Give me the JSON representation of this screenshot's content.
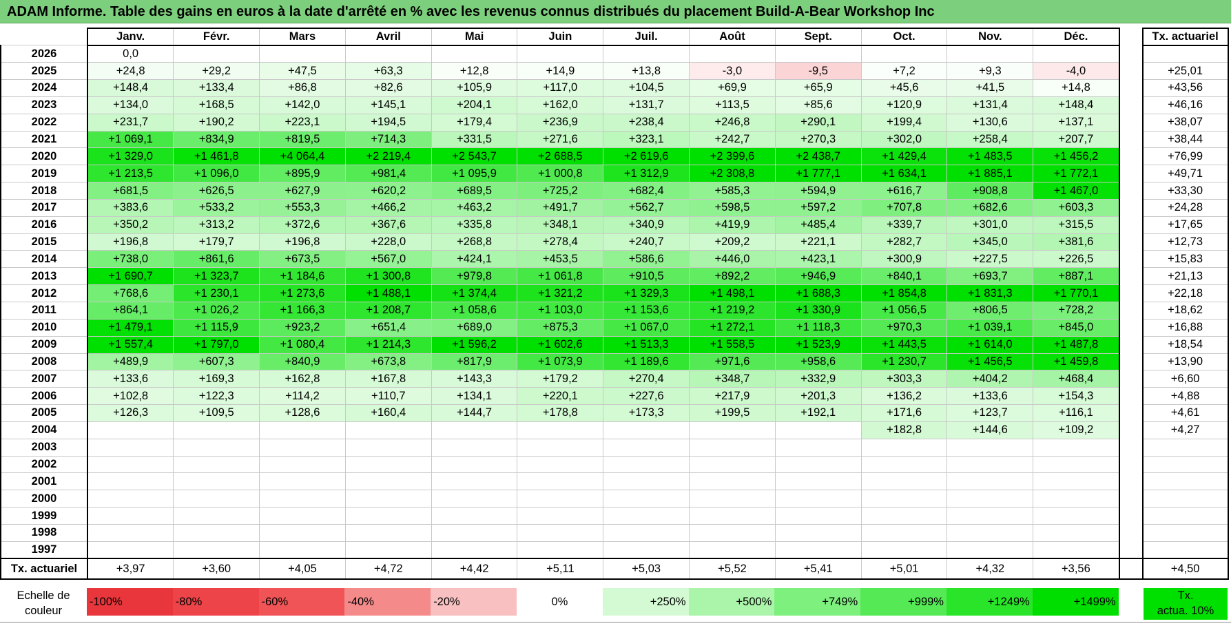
{
  "title": "ADAM Informe. Table des gains en euros à la date d'arrêté en % avec les revenus connus distribués du placement Build-A-Bear Workshop Inc",
  "chart_data": {
    "type": "table",
    "columns": [
      "Janv.",
      "Févr.",
      "Mars",
      "Avril",
      "Mai",
      "Juin",
      "Juil.",
      "Août",
      "Sept.",
      "Oct.",
      "Nov.",
      "Déc."
    ],
    "annual_header": "Tx. actuariel",
    "rows": [
      {
        "year": "2026",
        "values": [
          "0,0",
          "",
          "",
          "",
          "",
          "",
          "",
          "",
          "",
          "",
          "",
          ""
        ],
        "rate": ""
      },
      {
        "year": "2025",
        "values": [
          "+24,8",
          "+29,2",
          "+47,5",
          "+63,3",
          "+12,8",
          "+14,9",
          "+13,8",
          "-3,0",
          "-9,5",
          "+7,2",
          "+9,3",
          "-4,0"
        ],
        "rate": "+25,01"
      },
      {
        "year": "2024",
        "values": [
          "+148,4",
          "+133,4",
          "+86,8",
          "+82,6",
          "+105,9",
          "+117,0",
          "+104,5",
          "+69,9",
          "+65,9",
          "+45,6",
          "+41,5",
          "+14,8"
        ],
        "rate": "+43,56"
      },
      {
        "year": "2023",
        "values": [
          "+134,0",
          "+168,5",
          "+142,0",
          "+145,1",
          "+204,1",
          "+162,0",
          "+131,7",
          "+113,5",
          "+85,6",
          "+120,9",
          "+131,4",
          "+148,4"
        ],
        "rate": "+46,16"
      },
      {
        "year": "2022",
        "values": [
          "+231,7",
          "+190,2",
          "+223,1",
          "+194,5",
          "+179,4",
          "+236,9",
          "+238,4",
          "+246,8",
          "+290,1",
          "+199,4",
          "+130,6",
          "+137,1"
        ],
        "rate": "+38,07"
      },
      {
        "year": "2021",
        "values": [
          "+1 069,1",
          "+834,9",
          "+819,5",
          "+714,3",
          "+331,5",
          "+271,6",
          "+323,1",
          "+242,7",
          "+270,3",
          "+302,0",
          "+258,4",
          "+207,7"
        ],
        "rate": "+38,44"
      },
      {
        "year": "2020",
        "values": [
          "+1 329,0",
          "+1 461,8",
          "+4 064,4",
          "+2 219,4",
          "+2 543,7",
          "+2 688,5",
          "+2 619,6",
          "+2 399,6",
          "+2 438,7",
          "+1 429,4",
          "+1 483,5",
          "+1 456,2"
        ],
        "rate": "+76,99"
      },
      {
        "year": "2019",
        "values": [
          "+1 213,5",
          "+1 096,0",
          "+895,9",
          "+981,4",
          "+1 095,9",
          "+1 000,8",
          "+1 312,9",
          "+2 308,8",
          "+1 777,1",
          "+1 634,1",
          "+1 885,1",
          "+1 772,1"
        ],
        "rate": "+49,71"
      },
      {
        "year": "2018",
        "values": [
          "+681,5",
          "+626,5",
          "+627,9",
          "+620,2",
          "+689,5",
          "+725,2",
          "+682,4",
          "+585,3",
          "+594,9",
          "+616,7",
          "+908,8",
          "+1 467,0"
        ],
        "rate": "+33,30"
      },
      {
        "year": "2017",
        "values": [
          "+383,6",
          "+533,2",
          "+553,3",
          "+466,2",
          "+463,2",
          "+491,7",
          "+562,7",
          "+598,5",
          "+597,2",
          "+707,8",
          "+682,6",
          "+603,3"
        ],
        "rate": "+24,28"
      },
      {
        "year": "2016",
        "values": [
          "+350,2",
          "+313,2",
          "+372,6",
          "+367,6",
          "+335,8",
          "+348,1",
          "+340,9",
          "+419,9",
          "+485,4",
          "+339,7",
          "+301,0",
          "+315,5"
        ],
        "rate": "+17,65"
      },
      {
        "year": "2015",
        "values": [
          "+196,8",
          "+179,7",
          "+196,8",
          "+228,0",
          "+268,8",
          "+278,4",
          "+240,7",
          "+209,2",
          "+221,1",
          "+282,7",
          "+345,0",
          "+381,6"
        ],
        "rate": "+12,73"
      },
      {
        "year": "2014",
        "values": [
          "+738,0",
          "+861,6",
          "+673,5",
          "+567,0",
          "+424,1",
          "+453,5",
          "+586,6",
          "+446,0",
          "+423,1",
          "+300,9",
          "+227,5",
          "+226,5"
        ],
        "rate": "+15,83"
      },
      {
        "year": "2013",
        "values": [
          "+1 690,7",
          "+1 323,7",
          "+1 184,6",
          "+1 300,8",
          "+979,8",
          "+1 061,8",
          "+910,5",
          "+892,2",
          "+946,9",
          "+840,1",
          "+693,7",
          "+887,1"
        ],
        "rate": "+21,13"
      },
      {
        "year": "2012",
        "values": [
          "+768,6",
          "+1 230,1",
          "+1 273,6",
          "+1 488,1",
          "+1 374,4",
          "+1 321,2",
          "+1 329,3",
          "+1 498,1",
          "+1 688,3",
          "+1 854,8",
          "+1 831,3",
          "+1 770,1"
        ],
        "rate": "+22,18"
      },
      {
        "year": "2011",
        "values": [
          "+864,1",
          "+1 026,2",
          "+1 166,3",
          "+1 208,7",
          "+1 058,6",
          "+1 103,0",
          "+1 153,6",
          "+1 219,2",
          "+1 330,9",
          "+1 056,5",
          "+806,5",
          "+728,2"
        ],
        "rate": "+18,62"
      },
      {
        "year": "2010",
        "values": [
          "+1 479,1",
          "+1 115,9",
          "+923,2",
          "+651,4",
          "+689,0",
          "+875,3",
          "+1 067,0",
          "+1 272,1",
          "+1 118,3",
          "+970,3",
          "+1 039,1",
          "+845,0"
        ],
        "rate": "+16,88"
      },
      {
        "year": "2009",
        "values": [
          "+1 557,4",
          "+1 797,0",
          "+1 080,4",
          "+1 214,3",
          "+1 596,2",
          "+1 602,6",
          "+1 513,3",
          "+1 558,5",
          "+1 523,9",
          "+1 443,5",
          "+1 614,0",
          "+1 487,8"
        ],
        "rate": "+18,54"
      },
      {
        "year": "2008",
        "values": [
          "+489,9",
          "+607,3",
          "+840,9",
          "+673,8",
          "+817,9",
          "+1 073,9",
          "+1 189,6",
          "+971,6",
          "+958,6",
          "+1 230,7",
          "+1 456,5",
          "+1 459,8"
        ],
        "rate": "+13,90"
      },
      {
        "year": "2007",
        "values": [
          "+133,6",
          "+169,3",
          "+162,8",
          "+167,8",
          "+143,3",
          "+179,2",
          "+270,4",
          "+348,7",
          "+332,9",
          "+303,3",
          "+404,2",
          "+468,4"
        ],
        "rate": "+6,60"
      },
      {
        "year": "2006",
        "values": [
          "+102,8",
          "+122,3",
          "+114,2",
          "+110,7",
          "+134,1",
          "+220,1",
          "+227,6",
          "+217,9",
          "+201,3",
          "+136,2",
          "+133,6",
          "+154,3"
        ],
        "rate": "+4,88"
      },
      {
        "year": "2005",
        "values": [
          "+126,3",
          "+109,5",
          "+128,6",
          "+160,4",
          "+144,7",
          "+178,8",
          "+173,3",
          "+199,5",
          "+192,1",
          "+171,6",
          "+123,7",
          "+116,1"
        ],
        "rate": "+4,61"
      },
      {
        "year": "2004",
        "values": [
          "",
          "",
          "",
          "",
          "",
          "",
          "",
          "",
          "",
          "+182,8",
          "+144,6",
          "+109,2"
        ],
        "rate": "+4,27"
      },
      {
        "year": "2003",
        "values": [
          "",
          "",
          "",
          "",
          "",
          "",
          "",
          "",
          "",
          "",
          "",
          ""
        ],
        "rate": ""
      },
      {
        "year": "2002",
        "values": [
          "",
          "",
          "",
          "",
          "",
          "",
          "",
          "",
          "",
          "",
          "",
          ""
        ],
        "rate": ""
      },
      {
        "year": "2001",
        "values": [
          "",
          "",
          "",
          "",
          "",
          "",
          "",
          "",
          "",
          "",
          "",
          ""
        ],
        "rate": ""
      },
      {
        "year": "2000",
        "values": [
          "",
          "",
          "",
          "",
          "",
          "",
          "",
          "",
          "",
          "",
          "",
          ""
        ],
        "rate": ""
      },
      {
        "year": "1999",
        "values": [
          "",
          "",
          "",
          "",
          "",
          "",
          "",
          "",
          "",
          "",
          "",
          ""
        ],
        "rate": ""
      },
      {
        "year": "1998",
        "values": [
          "",
          "",
          "",
          "",
          "",
          "",
          "",
          "",
          "",
          "",
          "",
          ""
        ],
        "rate": ""
      },
      {
        "year": "1997",
        "values": [
          "",
          "",
          "",
          "",
          "",
          "",
          "",
          "",
          "",
          "",
          "",
          ""
        ],
        "rate": ""
      }
    ],
    "footer": {
      "label": "Tx. actuariel",
      "values": [
        "+3,97",
        "+3,60",
        "+4,05",
        "+4,72",
        "+4,42",
        "+5,11",
        "+5,03",
        "+5,52",
        "+5,41",
        "+5,01",
        "+4,32",
        "+3,56"
      ],
      "total": "+4,50"
    },
    "color_scale": {
      "label_line1": "Echelle de",
      "label_line2": "couleur",
      "steps": [
        {
          "label": "-100%",
          "color": "#e8363c",
          "align": "left"
        },
        {
          "label": "-80%",
          "color": "#ec4448",
          "align": "left"
        },
        {
          "label": "-60%",
          "color": "#f05456",
          "align": "left"
        },
        {
          "label": "-40%",
          "color": "#f48a8a",
          "align": "left"
        },
        {
          "label": "-20%",
          "color": "#f8c0c0",
          "align": "left"
        },
        {
          "label": "0%",
          "color": "#ffffff",
          "align": "center"
        },
        {
          "label": "+250%",
          "color": "#d4fad4",
          "align": "right"
        },
        {
          "label": "+500%",
          "color": "#aaf5aa",
          "align": "right"
        },
        {
          "label": "+749%",
          "color": "#7ef07e",
          "align": "right"
        },
        {
          "label": "+999%",
          "color": "#55ea55",
          "align": "right"
        },
        {
          "label": "+1249%",
          "color": "#2ae42a",
          "align": "right"
        },
        {
          "label": "+1499%",
          "color": "#00de00",
          "align": "right"
        }
      ],
      "tx_label_line1": "Tx.",
      "tx_label_line2": "actua. 10%",
      "tx_color": "#00e000"
    }
  }
}
